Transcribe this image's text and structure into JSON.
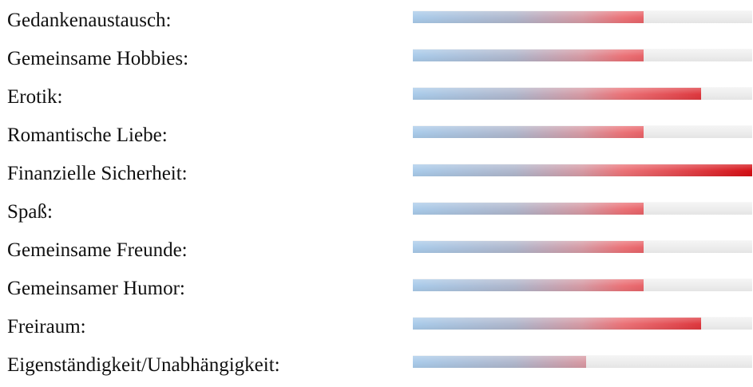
{
  "colors": {
    "bar_start": "#a9cbea",
    "bar_mid": "#d69aa4",
    "bar_end": "#d40f15",
    "track": "#ececec",
    "text": "#111111"
  },
  "ratings": [
    {
      "label": "Gedankenaustausch:",
      "value": 0.68
    },
    {
      "label": "Gemeinsame Hobbies:",
      "value": 0.68
    },
    {
      "label": "Erotik:",
      "value": 0.85
    },
    {
      "label": "Romantische Liebe:",
      "value": 0.68
    },
    {
      "label": "Finanzielle Sicherheit:",
      "value": 1.0
    },
    {
      "label": "Spaß:",
      "value": 0.68
    },
    {
      "label": "Gemeinsame Freunde:",
      "value": 0.68
    },
    {
      "label": "Gemeinsamer Humor:",
      "value": 0.68
    },
    {
      "label": "Freiraum:",
      "value": 0.85
    },
    {
      "label": "Eigenständigkeit/Unabhängigkeit:",
      "value": 0.51
    }
  ]
}
